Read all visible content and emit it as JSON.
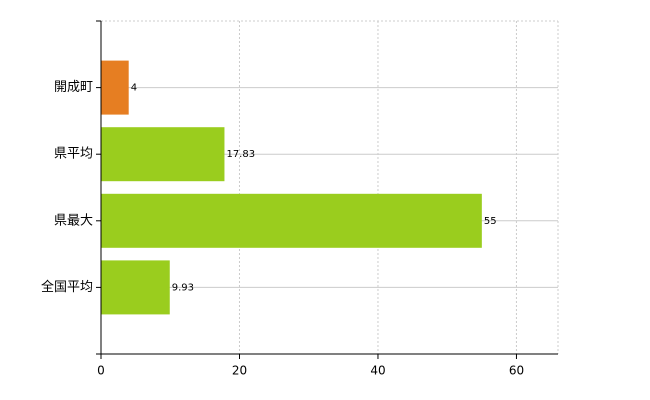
{
  "chart_data": {
    "type": "hbar",
    "categories": [
      "開成町",
      "県平均",
      "県最大",
      "全国平均"
    ],
    "values": [
      4,
      17.83,
      55,
      9.93
    ],
    "colors": [
      "#e67e22",
      "#9acd1e",
      "#9acd1e",
      "#9acd1e"
    ],
    "xlim": [
      0,
      66
    ],
    "xticks": [
      0,
      20,
      40,
      60
    ],
    "grid": true
  }
}
